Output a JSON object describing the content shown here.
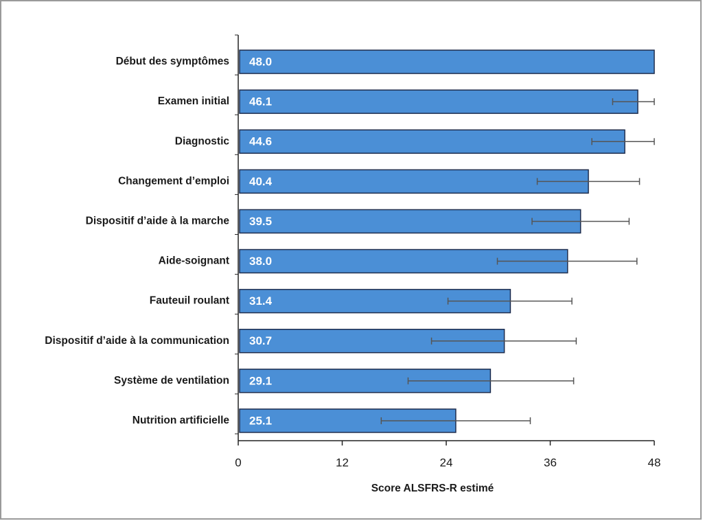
{
  "chart_data": {
    "type": "hbar",
    "categories": [
      "Début des symptômes",
      "Examen initial",
      "Diagnostic",
      "Changement d’emploi",
      "Dispositif d’aide à la marche",
      "Aide-soignant",
      "Fauteuil roulant",
      "Dispositif d’aide à la communication",
      "Système de ventilation",
      "Nutrition artificielle"
    ],
    "values": [
      48,
      46.1,
      44.6,
      40.4,
      39.5,
      38,
      31.4,
      30.7,
      29.1,
      25.1
    ],
    "value_labels": [
      "48.0",
      "46.1",
      "44.6",
      "40.4",
      "39.5",
      "38.0",
      "31.4",
      "30.7",
      "29.1",
      "25.1"
    ],
    "lower": [
      null,
      43.2,
      40.8,
      34.5,
      33.9,
      29.9,
      24.2,
      22.3,
      19.6,
      16.5
    ],
    "upper": [
      null,
      48,
      48,
      46.3,
      45.1,
      46,
      38.5,
      39,
      38.7,
      33.7
    ],
    "color": "#4b8fd6",
    "x_label": "Score ALSFRS-R estimé",
    "xlim": [
      0,
      48
    ],
    "xticks": [
      0,
      12,
      24,
      36,
      48
    ]
  }
}
